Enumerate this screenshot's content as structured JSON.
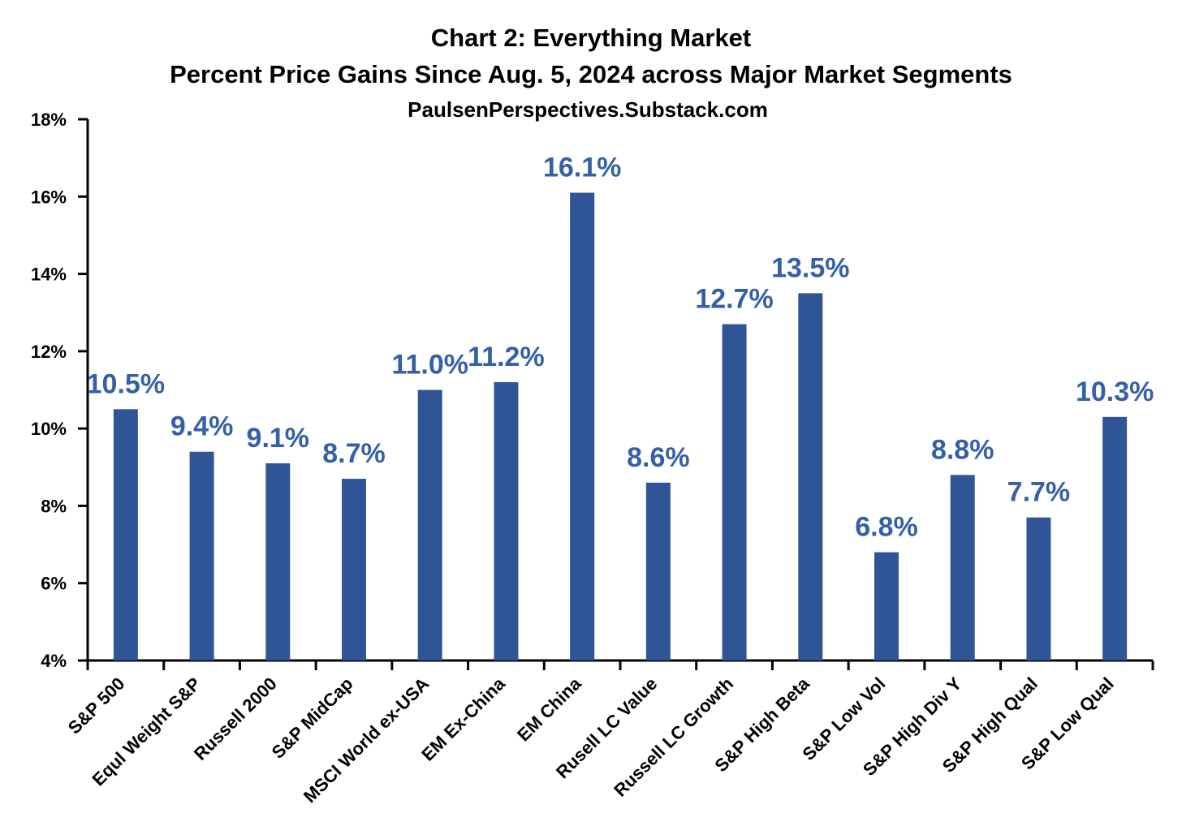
{
  "chart_data": {
    "type": "bar",
    "title": "Chart 2: Everything Market",
    "subtitle": "Percent Price Gains Since Aug. 5, 2024 across Major Market Segments",
    "source": "PaulsenPerspectives.Substack.com",
    "categories": [
      "S&P 500",
      "Equl Weight S&P",
      "Russell 2000",
      "S&P MidCap",
      "MSCI World ex-USA",
      "EM Ex-China",
      "EM China",
      "Rusell LC Value",
      "Russell LC Growth",
      "S&P High Beta",
      "S&P Low Vol",
      "S&P High Div Y",
      "S&P High Qual",
      "S&P Low Qual"
    ],
    "values": [
      10.5,
      9.4,
      9.1,
      8.7,
      11.0,
      11.2,
      16.1,
      8.6,
      12.7,
      13.5,
      6.8,
      8.8,
      7.7,
      10.3
    ],
    "value_labels": [
      "10.5%",
      "9.4%",
      "9.1%",
      "8.7%",
      "11.0%",
      "11.2%",
      "16.1%",
      "8.6%",
      "12.7%",
      "13.5%",
      "6.8%",
      "8.8%",
      "7.7%",
      "10.3%"
    ],
    "color": "#2f5597",
    "label_color": "#3560a8",
    "ylim": [
      4,
      18
    ],
    "yticks": [
      {
        "value": 4,
        "label": "4%"
      },
      {
        "value": 6,
        "label": "6%"
      },
      {
        "value": 8,
        "label": "8%"
      },
      {
        "value": 10,
        "label": "10%"
      },
      {
        "value": 12,
        "label": "12%"
      },
      {
        "value": 14,
        "label": "14%"
      },
      {
        "value": 16,
        "label": "16%"
      },
      {
        "value": 18,
        "label": "18%"
      }
    ],
    "grid": false
  }
}
